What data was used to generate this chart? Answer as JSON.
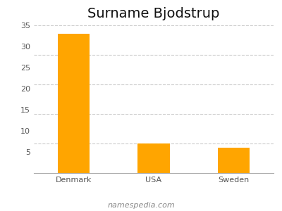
{
  "title": "Surname Bjodstrup",
  "categories": [
    "Denmark",
    "USA",
    "Sweden"
  ],
  "values": [
    33,
    7,
    6
  ],
  "bar_color": "#FFA500",
  "ylim": [
    0,
    35
  ],
  "yticks": [
    5,
    10,
    15,
    20,
    25,
    30,
    35
  ],
  "grid_lines": [
    7,
    14,
    21,
    28,
    35
  ],
  "background_color": "#ffffff",
  "grid_color": "#cccccc",
  "footer_text": "namespedia.com",
  "title_fontsize": 14,
  "tick_fontsize": 8,
  "footer_fontsize": 8
}
